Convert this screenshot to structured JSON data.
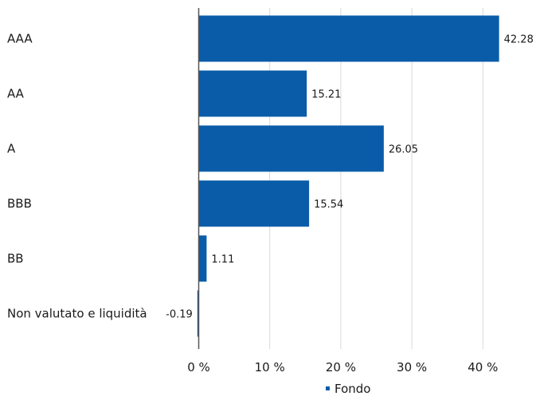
{
  "chart_data": {
    "type": "bar",
    "orientation": "horizontal",
    "categories": [
      "AAA",
      "AA",
      "A",
      "BBB",
      "BB",
      "Non valutato e liquidità"
    ],
    "series": [
      {
        "name": "Fondo",
        "values": [
          42.28,
          15.21,
          26.05,
          15.54,
          1.11,
          -0.19
        ],
        "color": "#0a5ca8"
      }
    ],
    "data_labels": [
      "42.28",
      "15.21",
      "26.05",
      "15.54",
      "1.11",
      "-0.19"
    ],
    "xticks": [
      "0 %",
      "10 %",
      "20 %",
      "30 %",
      "40 %"
    ],
    "xtick_values": [
      0,
      10,
      20,
      30,
      40
    ],
    "xlim": [
      0,
      47
    ],
    "grid": true,
    "legend": "bottom-center",
    "title": "",
    "xlabel": "",
    "ylabel": ""
  }
}
